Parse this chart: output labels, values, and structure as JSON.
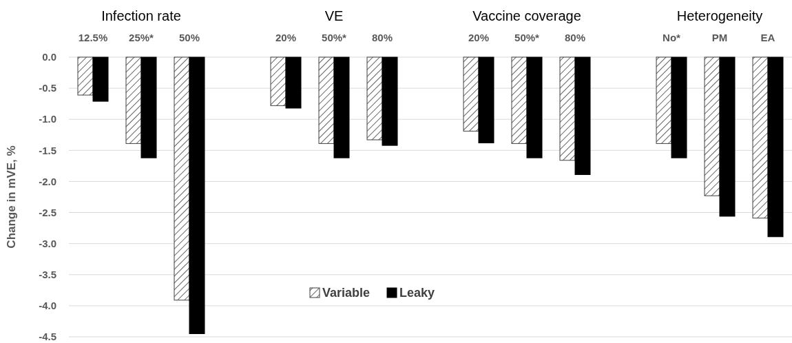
{
  "chart_data": {
    "type": "bar",
    "ylabel": "Change in mVE, %",
    "categories": [
      "12.5%",
      "25%*",
      "50%",
      null,
      "20%",
      "50%*",
      "80%",
      null,
      "20%",
      "50%*",
      "80%",
      null,
      "No*",
      "PM",
      "EA"
    ],
    "series": [
      {
        "name": "Variable",
        "color": "#404040",
        "values": [
          -0.61,
          -1.39,
          -3.91,
          null,
          -0.78,
          -1.39,
          -1.33,
          null,
          -1.19,
          -1.39,
          -1.66,
          null,
          -1.39,
          -2.23,
          -2.59
        ]
      },
      {
        "name": "Leaky",
        "color": "#000000",
        "values": [
          -0.71,
          -1.62,
          -4.45,
          null,
          -0.82,
          -1.62,
          -1.42,
          null,
          -1.38,
          -1.62,
          -1.89,
          null,
          -1.62,
          -2.56,
          -2.89
        ]
      }
    ],
    "annotations": [
      "Infection rate",
      "VE",
      "Vaccine coverage",
      "Heterogeneity"
    ],
    "ylim": [
      -4.5,
      0
    ],
    "yticks": [
      {
        "value": 0,
        "label": "0.0"
      },
      {
        "value": -0.5,
        "label": "-0.5"
      },
      {
        "value": -1,
        "label": "-1.0"
      },
      {
        "value": -1.5,
        "label": "-1.5"
      },
      {
        "value": -2,
        "label": "-2.0"
      },
      {
        "value": -2.5,
        "label": "-2.5"
      },
      {
        "value": -3,
        "label": "-3.0"
      },
      {
        "value": -3.5,
        "label": "-3.5"
      },
      {
        "value": -4,
        "label": "-4.0"
      },
      {
        "value": -4.5,
        "label": "-4.5"
      }
    ],
    "grid": "y",
    "legend": "bottom"
  }
}
